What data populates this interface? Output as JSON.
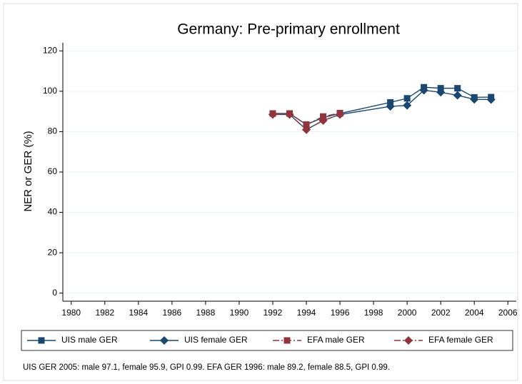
{
  "chart_data": {
    "type": "line",
    "title": "Germany: Pre-primary enrollment",
    "y_label": "NER or GER (%)",
    "note": "UIS GER 2005: male 97.1, female 95.9, GPI 0.99. EFA GER 1996: male 89.2, female 88.5, GPI 0.99.",
    "x": [
      1992,
      1993,
      1994,
      1995,
      1996,
      1999,
      2000,
      2001,
      2002,
      2003,
      2004,
      2005
    ],
    "series": [
      {
        "name": "UIS male GER",
        "color": "#1a476f",
        "marker": "square",
        "dash": false,
        "values": [
          89,
          89,
          83.5,
          87,
          89,
          94.5,
          96.5,
          102,
          101.5,
          101.5,
          97,
          97.1
        ]
      },
      {
        "name": "UIS female GER",
        "color": "#1a476f",
        "marker": "diamond",
        "dash": false,
        "values": [
          88.5,
          88.5,
          81,
          85.5,
          88.5,
          92.5,
          93,
          100.5,
          99.5,
          98,
          96,
          95.9
        ]
      },
      {
        "name": "EFA male GER",
        "color": "#90353b",
        "marker": "square",
        "dash": true,
        "values": [
          89,
          89,
          83.5,
          87.5,
          89.2,
          null,
          null,
          null,
          null,
          null,
          null,
          null
        ]
      },
      {
        "name": "EFA female GER",
        "color": "#90353b",
        "marker": "diamond",
        "dash": true,
        "values": [
          88.5,
          88.5,
          81,
          85.5,
          88.5,
          null,
          null,
          null,
          null,
          null,
          null,
          null
        ]
      }
    ],
    "xlim": [
      1979.5,
      2006.5
    ],
    "xticks": [
      1980,
      1982,
      1984,
      1986,
      1988,
      1990,
      1992,
      1994,
      1996,
      1998,
      2000,
      2002,
      2004,
      2006
    ],
    "ylim": [
      -4,
      124
    ],
    "yticks": [
      0,
      20,
      40,
      60,
      80,
      100,
      120
    ],
    "grid": true
  }
}
